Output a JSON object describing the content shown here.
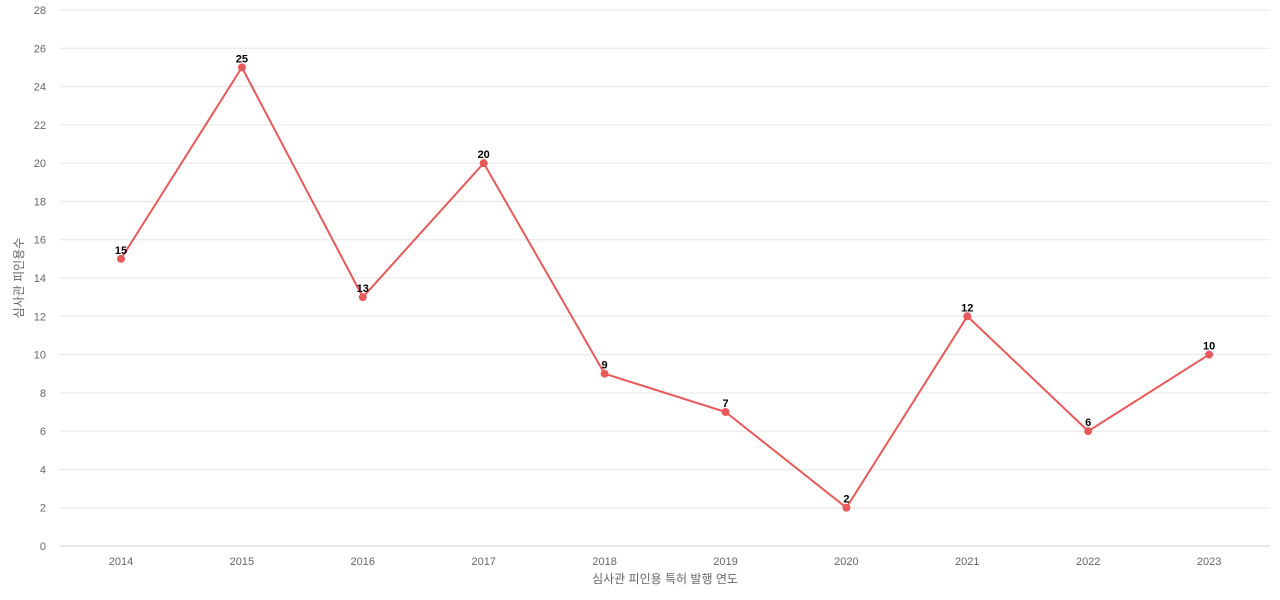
{
  "chart_data": {
    "type": "line",
    "title": "",
    "xlabel": "심사관 피인용 특허 발행 연도",
    "ylabel": "심사관 피인용수",
    "categories": [
      "2014",
      "2015",
      "2016",
      "2017",
      "2018",
      "2019",
      "2020",
      "2021",
      "2022",
      "2023"
    ],
    "series": [
      {
        "values": [
          15,
          25,
          13,
          20,
          9,
          7,
          2,
          12,
          6,
          10
        ]
      }
    ],
    "ylim": [
      0,
      28
    ],
    "yticks": [
      0,
      2,
      4,
      6,
      8,
      10,
      12,
      14,
      16,
      18,
      20,
      22,
      24,
      26,
      28
    ],
    "grid": true,
    "data_labels": true,
    "legend": "none"
  },
  "colors": {
    "line": "#e85a5a",
    "grid": "#e6e6e6",
    "tick_text": "#666666",
    "label_text": "#000000"
  }
}
